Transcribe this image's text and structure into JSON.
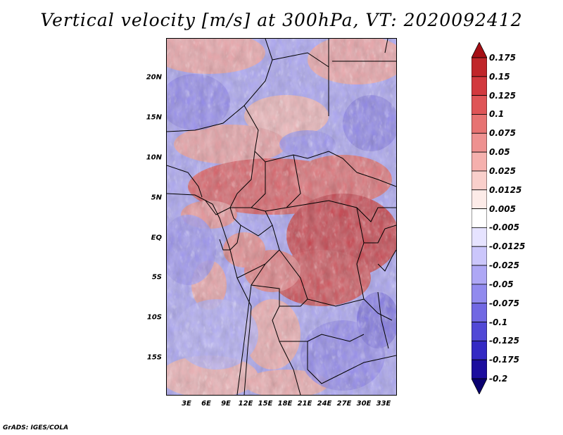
{
  "title": "Vertical velocity [m/s] at 300hPa, VT: 2020092412",
  "map": {
    "region": "Central Africa",
    "field": "Vertical velocity",
    "level": "300hPa",
    "latitude_labels": [
      "20N",
      "15N",
      "10N",
      "5N",
      "EQ",
      "5S",
      "10S",
      "15S"
    ],
    "longitude_labels": [
      "3E",
      "6E",
      "9E",
      "12E",
      "15E",
      "18E",
      "21E",
      "24E",
      "27E",
      "30E",
      "33E"
    ]
  },
  "colorbar": {
    "labels": [
      "0.175",
      "0.15",
      "0.125",
      "0.1",
      "0.075",
      "0.05",
      "0.025",
      "0.0125",
      "0.005",
      "-0.005",
      "-0.0125",
      "-0.025",
      "-0.05",
      "-0.075",
      "-0.1",
      "-0.125",
      "-0.175",
      "-0.2"
    ],
    "colors": [
      "#a50f15",
      "#c0262a",
      "#d2393e",
      "#df5557",
      "#e77372",
      "#ee9190",
      "#f5b0ad",
      "#f9cfcb",
      "#fcebe8",
      "#ffffff",
      "#e6e3ff",
      "#cbc6fb",
      "#aea7f5",
      "#918aee",
      "#7168e3",
      "#5148d6",
      "#3429c4",
      "#1c0d9e",
      "#0a0070"
    ]
  },
  "credit": "GrADS: IGES/COLA"
}
